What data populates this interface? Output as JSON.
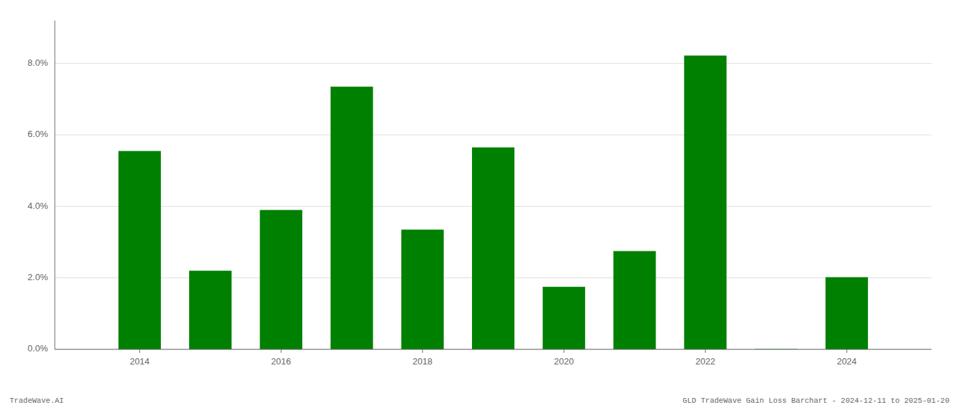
{
  "chart_data": {
    "type": "bar",
    "x": [
      2014,
      2015,
      2016,
      2017,
      2018,
      2019,
      2020,
      2021,
      2022,
      2023,
      2024
    ],
    "values": [
      0.0555,
      0.022,
      0.039,
      0.0735,
      0.0335,
      0.0565,
      0.0175,
      0.0275,
      0.0822,
      0.0001,
      0.0202
    ],
    "color": "#008000",
    "xlim": [
      2012.8,
      2025.2
    ],
    "xticks": [
      2014,
      2016,
      2018,
      2020,
      2022,
      2024
    ],
    "ylim": [
      0,
      0.092
    ],
    "yticks": [
      {
        "value": 0.0,
        "label": "0.0%"
      },
      {
        "value": 0.02,
        "label": "2.0%"
      },
      {
        "value": 0.04,
        "label": "4.0%"
      },
      {
        "value": 0.06,
        "label": "6.0%"
      },
      {
        "value": 0.08,
        "label": "8.0%"
      }
    ],
    "grid": true,
    "annotations": [
      "TradeWave.AI",
      "GLD TradeWave Gain Loss Barchart - 2024-12-11 to 2025-01-20"
    ]
  }
}
